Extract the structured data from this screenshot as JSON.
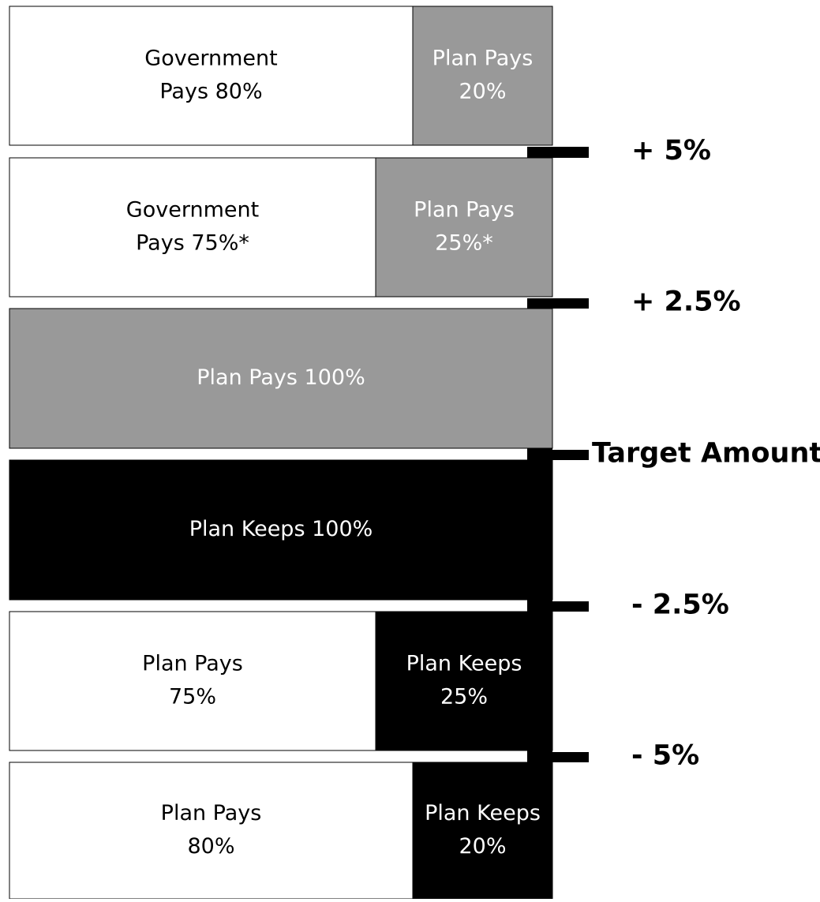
{
  "rows": [
    {
      "cells": [
        {
          "lines": [
            "Government",
            "Pays 80%"
          ],
          "fill": "white"
        },
        {
          "lines": [
            "Plan Pays",
            "20%"
          ],
          "fill": "gray"
        }
      ]
    },
    {
      "cells": [
        {
          "lines": [
            "Government",
            "Pays 75%*"
          ],
          "fill": "white"
        },
        {
          "lines": [
            "Plan Pays",
            "25%*"
          ],
          "fill": "gray"
        }
      ]
    },
    {
      "cells": [
        {
          "lines": [
            "Plan Pays 100%"
          ],
          "fill": "gray"
        }
      ]
    },
    {
      "cells": [
        {
          "lines": [
            "Plan Keeps 100%"
          ],
          "fill": "black"
        }
      ]
    },
    {
      "cells": [
        {
          "lines": [
            "Plan Pays",
            "75%"
          ],
          "fill": "white"
        },
        {
          "lines": [
            "Plan Keeps",
            "25%"
          ],
          "fill": "black"
        }
      ]
    },
    {
      "cells": [
        {
          "lines": [
            "Plan Pays",
            "80%"
          ],
          "fill": "white"
        },
        {
          "lines": [
            "Plan Keeps",
            "20%"
          ],
          "fill": "black"
        }
      ]
    }
  ],
  "thresholds": [
    "+ 5%",
    "+ 2.5%",
    "Target Amount",
    "- 2.5%",
    "- 5%"
  ]
}
